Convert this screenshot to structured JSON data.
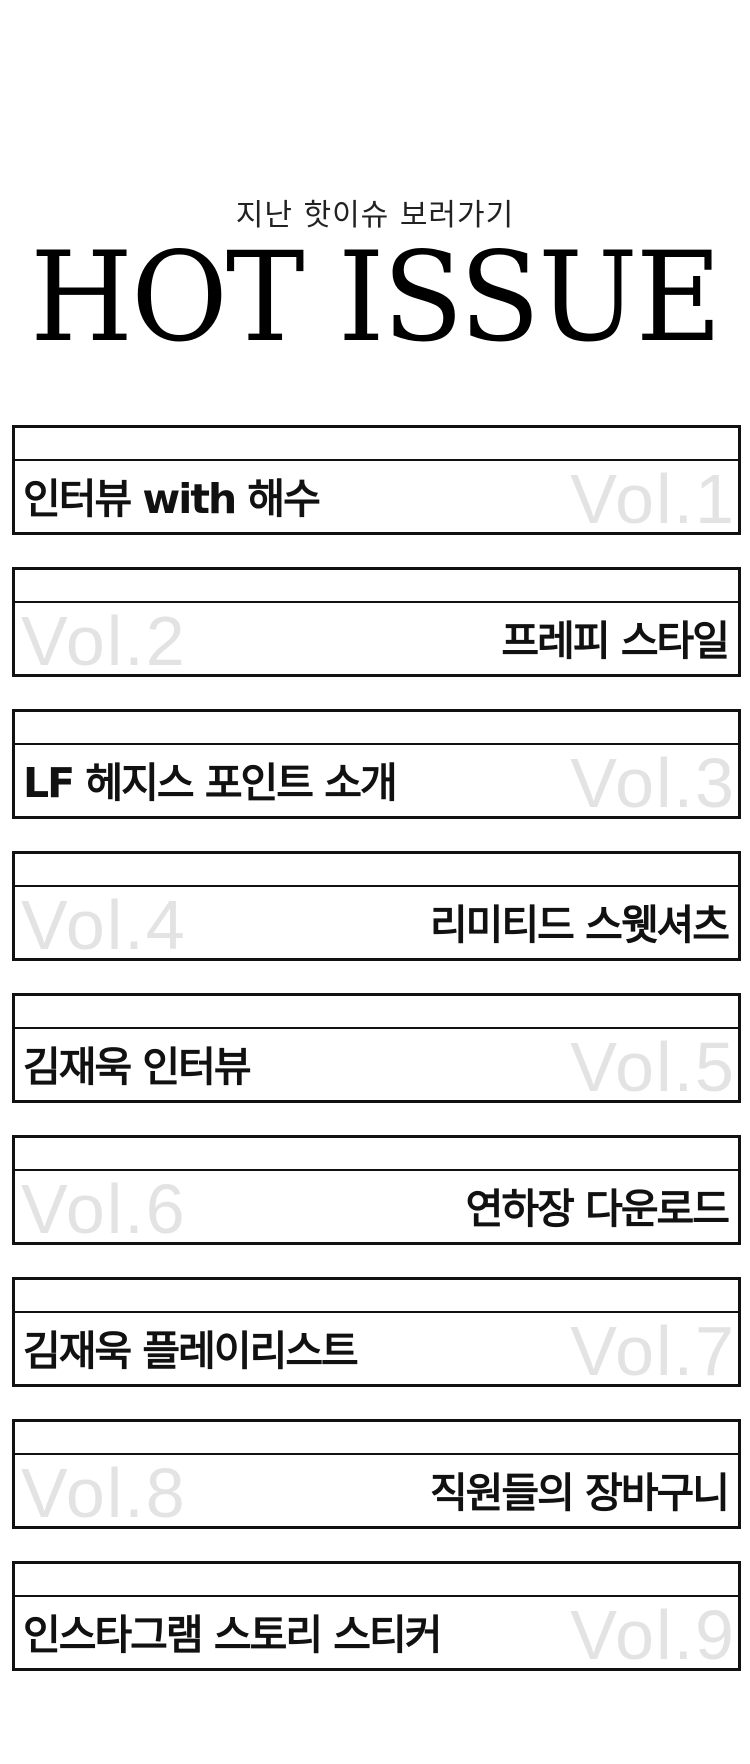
{
  "header": {
    "subtitle": "지난 핫이슈 보러가기",
    "title": "HOT ISSUE"
  },
  "colors": {
    "text": "#111111",
    "border": "#111111",
    "vol_text": "#e3e3e3",
    "background": "#ffffff"
  },
  "issues": [
    {
      "title": "인터뷰 with 해수",
      "vol": "Vol.1",
      "align": "left"
    },
    {
      "title": "프레피 스타일",
      "vol": "Vol.2",
      "align": "right"
    },
    {
      "title": "LF 헤지스 포인트 소개",
      "vol": "Vol.3",
      "align": "left"
    },
    {
      "title": "리미티드 스웻셔츠",
      "vol": "Vol.4",
      "align": "right"
    },
    {
      "title": "김재욱 인터뷰",
      "vol": "Vol.5",
      "align": "left"
    },
    {
      "title": "연하장 다운로드",
      "vol": "Vol.6",
      "align": "right"
    },
    {
      "title": "김재욱 플레이리스트",
      "vol": "Vol.7",
      "align": "left"
    },
    {
      "title": "직원들의 장바구니",
      "vol": "Vol.8",
      "align": "right"
    },
    {
      "title": "인스타그램 스토리 스티커",
      "vol": "Vol.9",
      "align": "left"
    }
  ]
}
